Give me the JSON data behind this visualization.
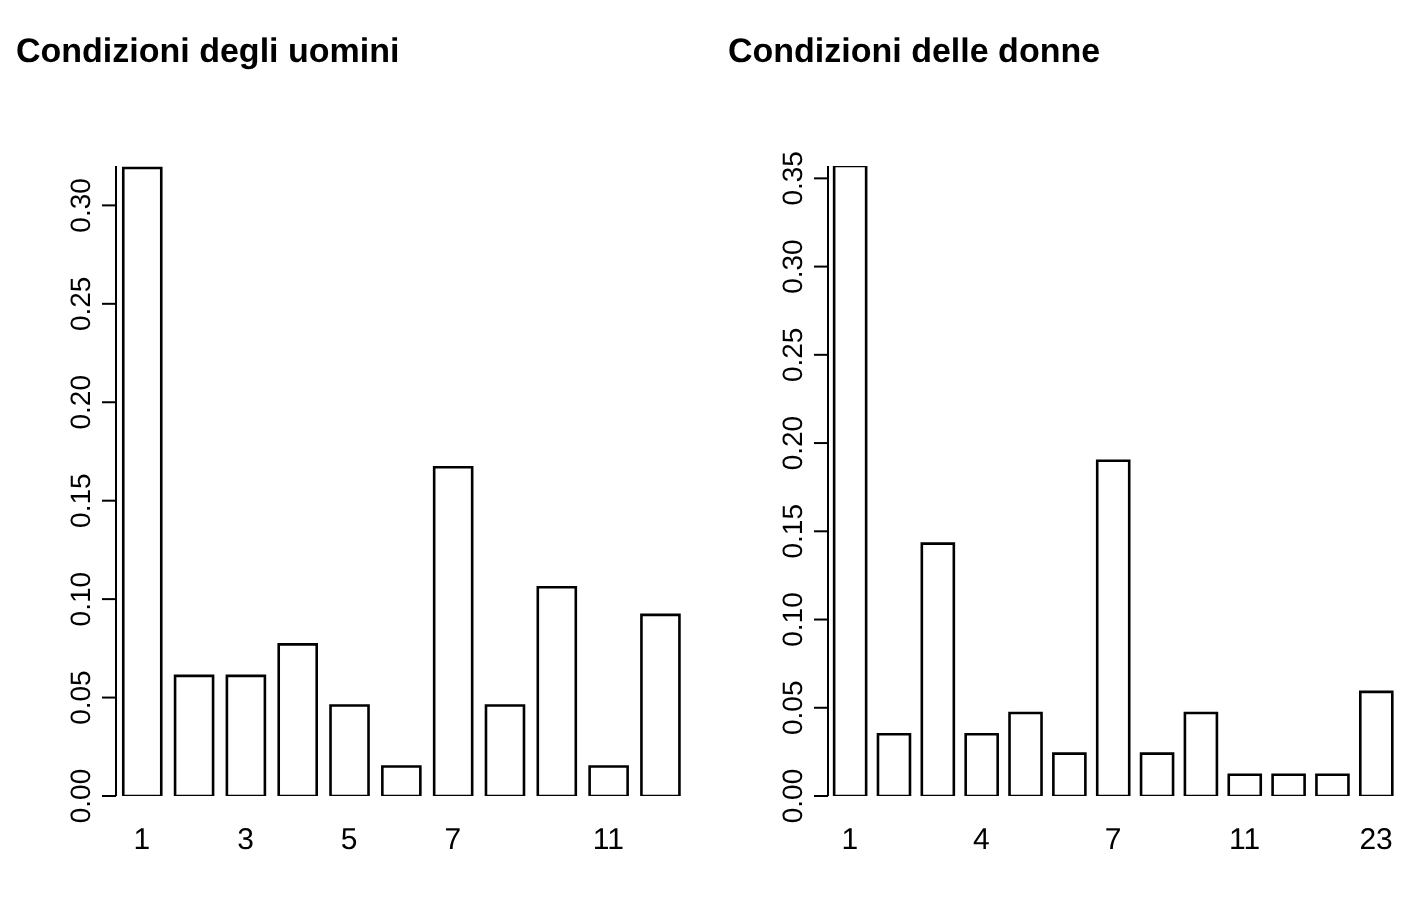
{
  "chart_data": [
    {
      "type": "bar",
      "title": "Condizioni degli uomini",
      "categories": [
        "1",
        null,
        "3",
        null,
        "5",
        null,
        "7",
        null,
        null,
        "11",
        null
      ],
      "values": [
        0.319,
        0.061,
        0.061,
        0.077,
        0.046,
        0.015,
        0.167,
        0.046,
        0.106,
        0.015,
        0.092
      ],
      "color": "#ffffff",
      "ylim": [
        0,
        0.32
      ],
      "yticks": [
        {
          "value": 0,
          "label": "0.00"
        },
        {
          "value": 0.05,
          "label": "0.05"
        },
        {
          "value": 0.1,
          "label": "0.10"
        },
        {
          "value": 0.15,
          "label": "0.15"
        },
        {
          "value": 0.2,
          "label": "0.20"
        },
        {
          "value": 0.25,
          "label": "0.25"
        },
        {
          "value": 0.3,
          "label": "0.30"
        }
      ],
      "grid": false
    },
    {
      "type": "bar",
      "title": "Condizioni delle donne",
      "categories": [
        "1",
        null,
        null,
        "4",
        null,
        null,
        "7",
        null,
        null,
        "11",
        null,
        null,
        "23"
      ],
      "values": [
        0.357,
        0.035,
        0.143,
        0.035,
        0.047,
        0.024,
        0.19,
        0.024,
        0.047,
        0.012,
        0.012,
        0.012,
        0.059
      ],
      "color": "#ffffff",
      "ylim": [
        0,
        0.357
      ],
      "yticks": [
        {
          "value": 0,
          "label": "0.00"
        },
        {
          "value": 0.05,
          "label": "0.05"
        },
        {
          "value": 0.1,
          "label": "0.10"
        },
        {
          "value": 0.15,
          "label": "0.15"
        },
        {
          "value": 0.2,
          "label": "0.20"
        },
        {
          "value": 0.25,
          "label": "0.25"
        },
        {
          "value": 0.3,
          "label": "0.30"
        },
        {
          "value": 0.35,
          "label": "0.35"
        }
      ],
      "grid": false
    }
  ]
}
